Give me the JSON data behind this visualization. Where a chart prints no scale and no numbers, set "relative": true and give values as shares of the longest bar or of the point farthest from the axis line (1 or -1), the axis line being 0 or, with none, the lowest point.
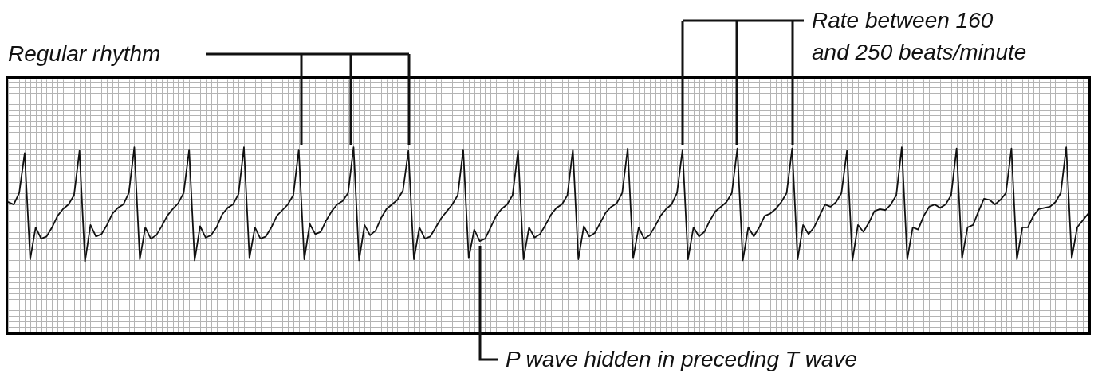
{
  "chart_data": {
    "type": "line",
    "relative": true,
    "grid": true,
    "annotations": [
      "Regular rhythm",
      "Rate between 160\nand 250 beats/minute",
      "P wave hidden in preceding T wave"
    ],
    "categories": [
      null,
      null,
      null,
      null,
      null,
      null,
      null,
      null,
      null,
      null,
      null,
      null,
      null,
      null,
      null,
      null,
      null,
      null,
      null,
      null,
      null,
      null,
      null,
      null,
      null,
      null,
      null,
      null,
      null,
      null,
      null,
      null,
      null,
      null,
      null,
      null,
      null,
      null,
      null,
      null,
      null,
      null,
      null,
      null,
      null,
      null,
      null,
      null,
      null,
      null,
      null,
      null,
      null,
      null,
      null,
      null,
      null,
      null,
      null,
      null,
      null,
      null,
      null,
      null,
      null,
      null,
      null,
      null,
      null,
      null,
      null,
      null,
      null,
      null,
      null,
      null,
      null,
      null,
      null,
      null,
      null,
      null,
      null,
      null,
      null,
      null,
      null,
      null,
      null,
      null,
      null,
      null,
      null,
      null,
      null,
      null,
      null,
      null,
      null,
      null,
      null,
      null,
      null,
      null,
      null,
      null,
      null,
      null,
      null,
      null,
      null,
      null,
      null,
      null,
      null,
      null,
      null,
      null,
      null,
      null,
      null,
      null,
      null,
      null,
      null,
      null,
      null,
      null,
      null,
      null,
      null,
      null,
      null,
      null,
      null,
      null,
      null,
      null,
      null,
      null,
      null,
      null,
      null,
      null,
      null,
      null,
      null,
      null,
      null,
      null,
      null,
      null,
      null,
      null,
      null,
      null,
      null,
      null,
      null,
      null,
      null,
      null,
      null,
      null,
      null,
      null,
      null,
      null,
      null,
      null,
      null,
      null,
      null,
      null,
      null,
      null,
      null,
      null,
      null,
      null,
      null,
      null,
      null,
      null,
      null,
      null,
      null,
      null,
      null,
      null,
      null,
      null,
      null,
      null,
      null,
      null,
      null,
      null
    ],
    "series": [
      {
        "color": "#111111",
        "values": [
          0.52,
          0.5,
          0.6,
          0.95,
          0.02,
          0.3,
          0.2,
          0.22,
          0.3,
          0.4,
          0.46,
          0.5,
          0.58,
          0.97,
          0,
          0.32,
          0.22,
          0.24,
          0.32,
          0.42,
          0.47,
          0.5,
          0.6,
          1,
          0.02,
          0.3,
          0.2,
          0.23,
          0.31,
          0.4,
          0.46,
          0.51,
          0.6,
          0.98,
          0.01,
          0.31,
          0.21,
          0.23,
          0.3,
          0.41,
          0.47,
          0.5,
          0.59,
          1,
          0.03,
          0.3,
          0.2,
          0.22,
          0.3,
          0.4,
          0.45,
          0.5,
          0.58,
          0.98,
          0.02,
          0.33,
          0.24,
          0.26,
          0.36,
          0.44,
          0.5,
          0.53,
          0.6,
          1,
          0.01,
          0.32,
          0.23,
          0.27,
          0.38,
          0.46,
          0.5,
          0.54,
          0.62,
          0.97,
          0.02,
          0.3,
          0.2,
          0.22,
          0.3,
          0.38,
          0.44,
          0.5,
          0.58,
          0.98,
          0.03,
          0.28,
          0.18,
          0.2,
          0.3,
          0.4,
          0.46,
          0.5,
          0.58,
          0.97,
          0.02,
          0.3,
          0.21,
          0.24,
          0.32,
          0.41,
          0.47,
          0.5,
          0.58,
          0.98,
          0.02,
          0.31,
          0.22,
          0.25,
          0.34,
          0.43,
          0.48,
          0.51,
          0.6,
          0.99,
          0.03,
          0.3,
          0.2,
          0.23,
          0.31,
          0.4,
          0.46,
          0.5,
          0.6,
          0.98,
          0.02,
          0.3,
          0.22,
          0.26,
          0.36,
          0.44,
          0.48,
          0.52,
          0.6,
          0.99,
          0.01,
          0.3,
          0.22,
          0.3,
          0.4,
          0.42,
          0.46,
          0.52,
          0.6,
          0.99,
          0.02,
          0.32,
          0.24,
          0.3,
          0.4,
          0.5,
          0.48,
          0.52,
          0.6,
          0.97,
          0.01,
          0.32,
          0.26,
          0.34,
          0.44,
          0.46,
          0.45,
          0.5,
          0.58,
          1,
          0.02,
          0.3,
          0.28,
          0.4,
          0.48,
          0.5,
          0.47,
          0.5,
          0.58,
          0.99,
          0.03,
          0.3,
          0.32,
          0.44,
          0.55,
          0.54,
          0.5,
          0.54,
          0.6,
          0.99,
          0.02,
          0.3,
          0.3,
          0.4,
          0.46,
          0.47,
          0.48,
          0.52,
          0.6,
          1,
          0.03,
          0.3,
          0.36,
          0.42
        ]
      }
    ]
  }
}
